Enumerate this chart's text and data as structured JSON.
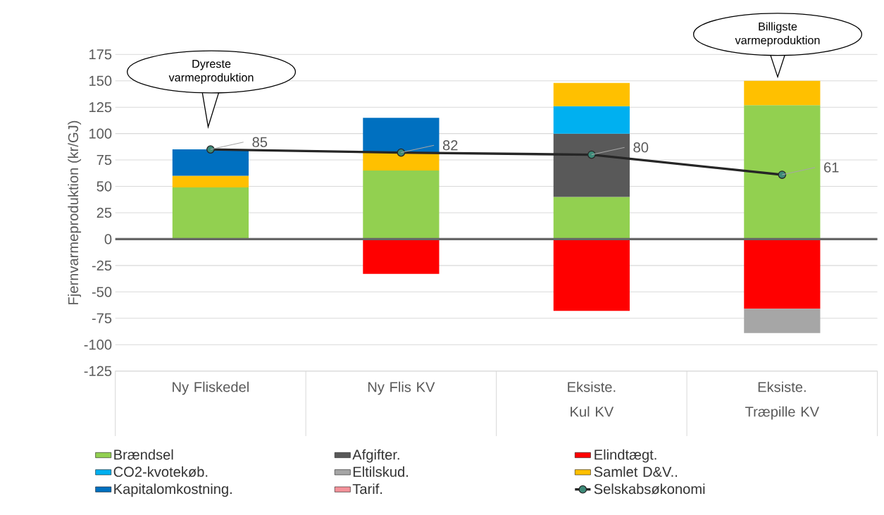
{
  "chart_data": {
    "type": "bar",
    "stacked": true,
    "ylabel": "Fjernvarmeproduktion (kr/GJ)",
    "categories": [
      "Ny Fliskedel",
      "Ny Flis KV",
      "Eksiste. Kul KV",
      "Eksiste. Træpille KV"
    ],
    "series": [
      {
        "name": "Brændsel",
        "color": "#92d050",
        "values": [
          49,
          65,
          40,
          127
        ]
      },
      {
        "name": "Afgifter.",
        "color": "#595959",
        "values": [
          null,
          null,
          60,
          null
        ]
      },
      {
        "name": "Elindtægt.",
        "color": "#ff0000",
        "values": [
          null,
          -33,
          -68,
          -66
        ]
      },
      {
        "name": "CO2-kvotekøb.",
        "color": "#00b0f0",
        "values": [
          null,
          null,
          26,
          null
        ]
      },
      {
        "name": "Eltilskud.",
        "color": "#a6a6a6",
        "values": [
          null,
          null,
          null,
          -23
        ]
      },
      {
        "name": "Samlet D&V..",
        "color": "#ffc000",
        "values": [
          11,
          17,
          22,
          23
        ]
      },
      {
        "name": "Kapitalomkostning.",
        "color": "#0070c0",
        "values": [
          25,
          33,
          null,
          null
        ]
      },
      {
        "name": "Tarif.",
        "color": "#f4929a",
        "values": [
          null,
          null,
          null,
          null
        ]
      },
      {
        "name": "Selskabsøkonomi",
        "type": "line",
        "color": "#3d8a78",
        "marker": "circle",
        "values": [
          85,
          82,
          80,
          61
        ],
        "value_labels": [
          "85",
          "82",
          "80",
          "61"
        ]
      }
    ],
    "ylim": [
      -125,
      175
    ],
    "yticks": [
      -125,
      -100,
      -75,
      -50,
      -25,
      0,
      25,
      50,
      75,
      100,
      125,
      150,
      175
    ],
    "grid": "y",
    "legend": "bottom",
    "annotations": [
      "Dyreste varmeproduktion",
      "Billigste varmeproduktion"
    ]
  }
}
